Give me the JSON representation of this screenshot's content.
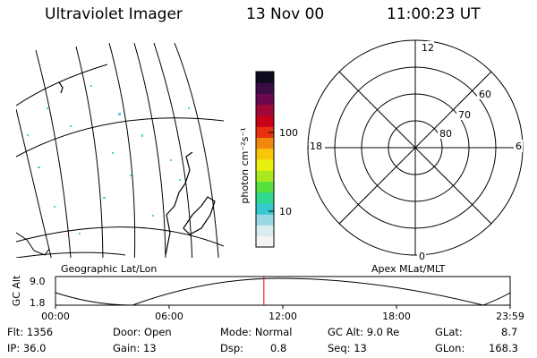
{
  "header": {
    "instrument": "Ultraviolet Imager",
    "date": "13 Nov 00",
    "time": "11:00:23 UT"
  },
  "colorbar": {
    "unit_label": "photon cm⁻²s⁻¹",
    "ticks": [
      {
        "label": "100",
        "value": 100
      },
      {
        "label": "10",
        "value": 10
      }
    ],
    "colors": [
      "#f4f4f4",
      "#d8ecf2",
      "#9ad8e6",
      "#38c8d0",
      "#30d890",
      "#58e040",
      "#a8e820",
      "#e8f010",
      "#f8c808",
      "#f08810",
      "#e83010",
      "#c80018",
      "#a00838",
      "#6c0850",
      "#3c0c48",
      "#100c20"
    ]
  },
  "geo_panel": {
    "label": "Geographic Lat/Lon"
  },
  "polar_panel": {
    "label": "Apex MLat/MLT",
    "mlt_labels": {
      "top": "12",
      "bottom": "0",
      "left": "18",
      "right": "6"
    },
    "lat_labels": [
      "60",
      "70",
      "80"
    ]
  },
  "timeline": {
    "ylabel": "GC Alt",
    "y_ticks": [
      "9.0",
      "1.8"
    ],
    "x_ticks": [
      "00:00",
      "06:00",
      "12:00",
      "18:00",
      "23:59"
    ],
    "marker_color": "#e00000",
    "marker_hour": 11.0
  },
  "info": {
    "flt": "Flt: 1356",
    "ip": "IP: 36.0",
    "door": "Door: Open",
    "gain": "Gain: 13",
    "mode": "Mode: Normal",
    "dsp_label": "Dsp:",
    "dsp_value": "0.8",
    "gcalt": "GC Alt: 9.0 Re",
    "seq": "Seq: 13",
    "glat_label": "GLat:",
    "glat_value": "8.7",
    "glon_label": "GLon:",
    "glon_value": "168.3"
  }
}
